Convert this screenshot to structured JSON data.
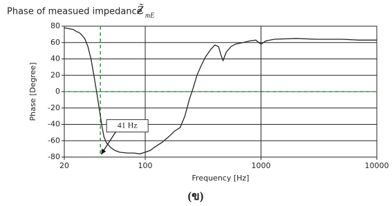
{
  "chart_data": {
    "type": "line",
    "title": "Phase of measued impedance",
    "title_symbol": "Z̃",
    "title_subscript": "mE",
    "x_label": "Frequency [Hz]",
    "y_label": "Phase [Degree]",
    "caption": "(ข)",
    "log_x": true,
    "grid": true,
    "xlim": [
      20,
      10000
    ],
    "xticks": [
      20,
      100,
      1000,
      10000
    ],
    "ylim": [
      -80,
      80
    ],
    "yticks": [
      -80,
      -60,
      -40,
      -20,
      0,
      20,
      40,
      60,
      80
    ],
    "x": [
      20,
      22,
      24,
      25,
      27,
      28,
      30,
      32,
      34,
      36,
      38,
      40,
      42,
      44,
      46,
      50,
      55,
      60,
      70,
      80,
      90,
      100,
      110,
      120,
      140,
      160,
      180,
      200,
      220,
      240,
      260,
      280,
      300,
      330,
      370,
      400,
      430,
      450,
      470,
      500,
      550,
      600,
      700,
      800,
      900,
      1000,
      1100,
      1300,
      2000,
      3000,
      5000,
      7000,
      10000
    ],
    "series": [
      {
        "color": "#222222",
        "values": [
          78,
          77,
          76,
          74,
          72,
          70,
          65,
          55,
          40,
          20,
          0,
          -20,
          -40,
          -55,
          -62,
          -68,
          -72,
          -74,
          -75,
          -75,
          -76,
          -74,
          -72,
          -68,
          -62,
          -55,
          -48,
          -44,
          -30,
          -10,
          5,
          20,
          30,
          42,
          52,
          57,
          55,
          45,
          38,
          48,
          55,
          58,
          60,
          62,
          63,
          58,
          62,
          64,
          65,
          64,
          64,
          63,
          63
        ]
      }
    ],
    "reference_x": 41,
    "reference_y": 0,
    "reference_color": "#2a9d3a",
    "annotation": {
      "text": "41 Hz",
      "x": 41,
      "y": -78
    }
  }
}
